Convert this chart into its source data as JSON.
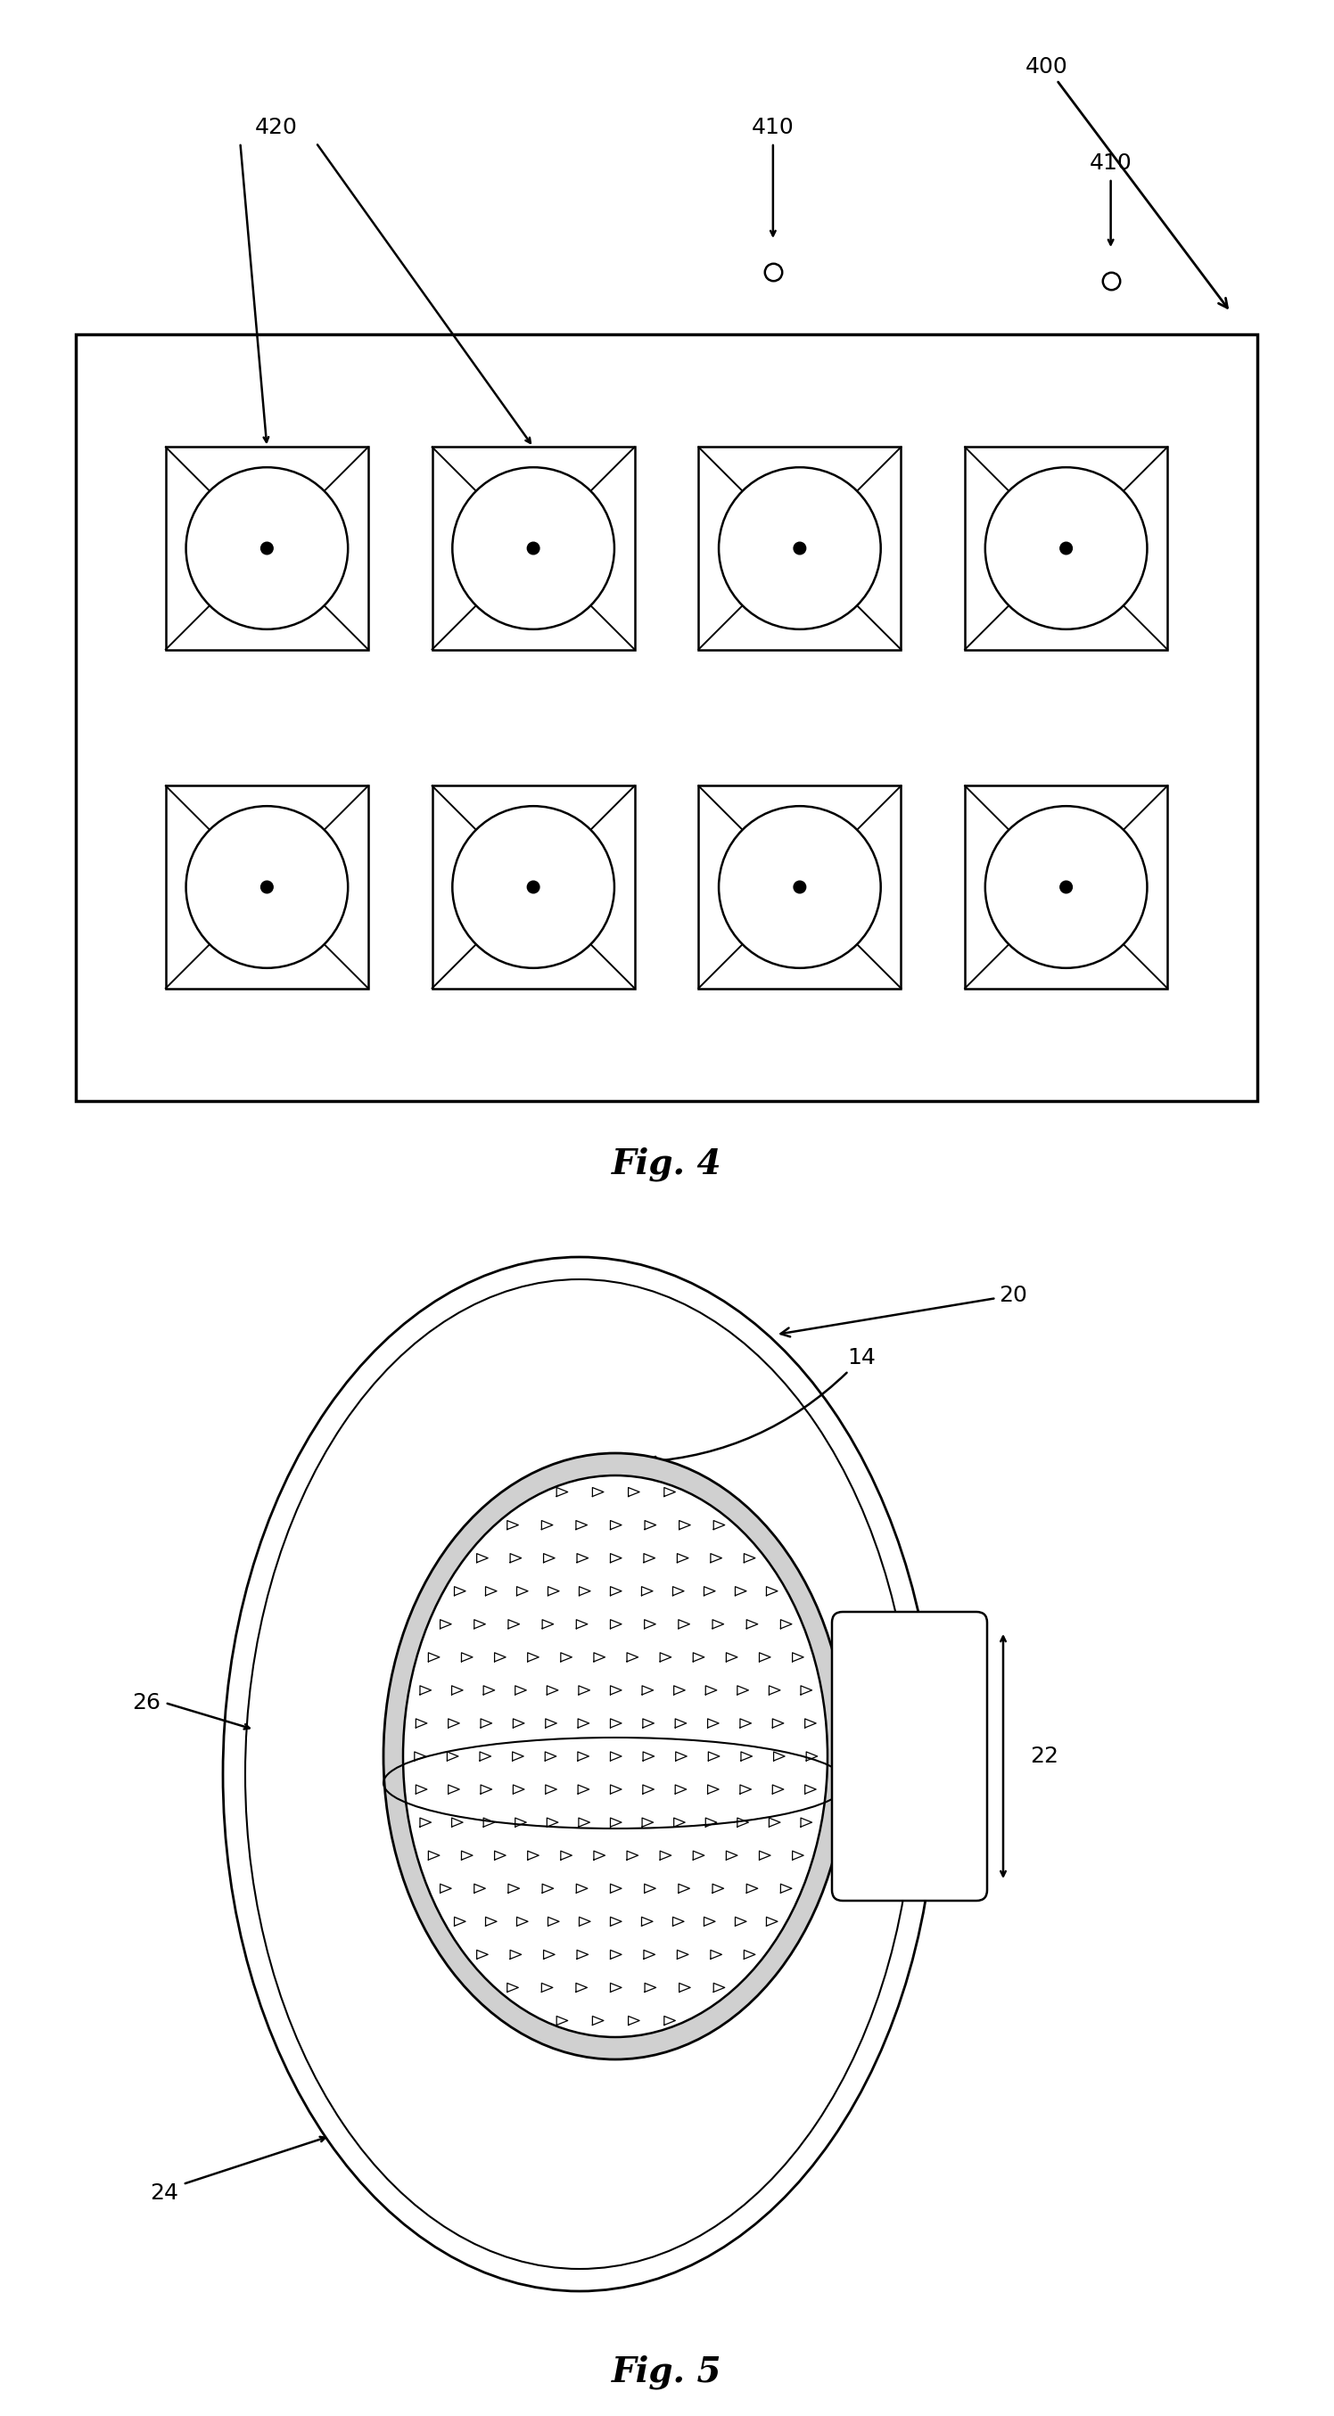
{
  "line_color": "#000000",
  "bg_color": "#ffffff",
  "fig4_title": "Fig. 4",
  "fig5_title": "Fig. 5"
}
